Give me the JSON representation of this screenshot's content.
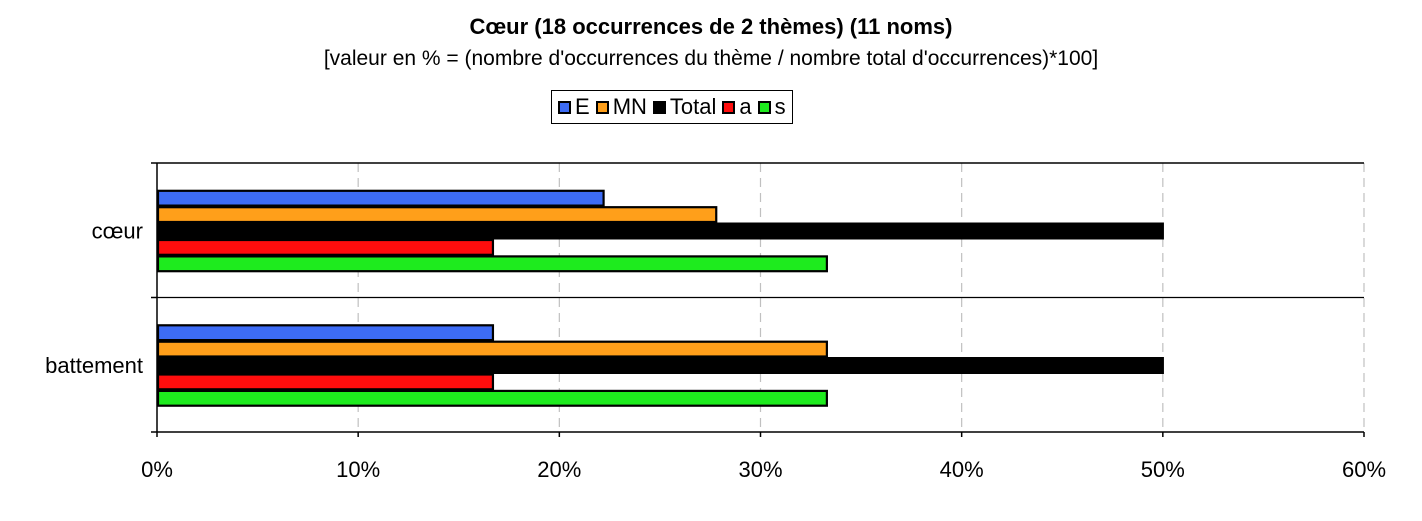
{
  "chart_data": {
    "type": "bar",
    "orientation": "horizontal",
    "title": "Cœur (18 occurrences de 2 thèmes) (11 noms)",
    "subtitle": "[valeur en % = (nombre d'occurrences du thème / nombre total d'occurrences)*100]",
    "categories": [
      "cœur",
      "battement"
    ],
    "series": [
      {
        "name": "E",
        "color": "#3d6cf5",
        "values": [
          22.2,
          16.7
        ]
      },
      {
        "name": "MN",
        "color": "#ff9f1a",
        "values": [
          27.8,
          33.3
        ]
      },
      {
        "name": "Total",
        "color": "#000000",
        "values": [
          50.0,
          50.0
        ]
      },
      {
        "name": "a",
        "color": "#ff0d0d",
        "values": [
          16.7,
          16.7
        ]
      },
      {
        "name": "s",
        "color": "#1eeb1e",
        "values": [
          33.3,
          33.3
        ]
      }
    ],
    "xlim": [
      0,
      60
    ],
    "xticks": [
      "0%",
      "10%",
      "20%",
      "30%",
      "40%",
      "50%",
      "60%"
    ],
    "grid": "vertical dashed",
    "legend_position": "top"
  }
}
